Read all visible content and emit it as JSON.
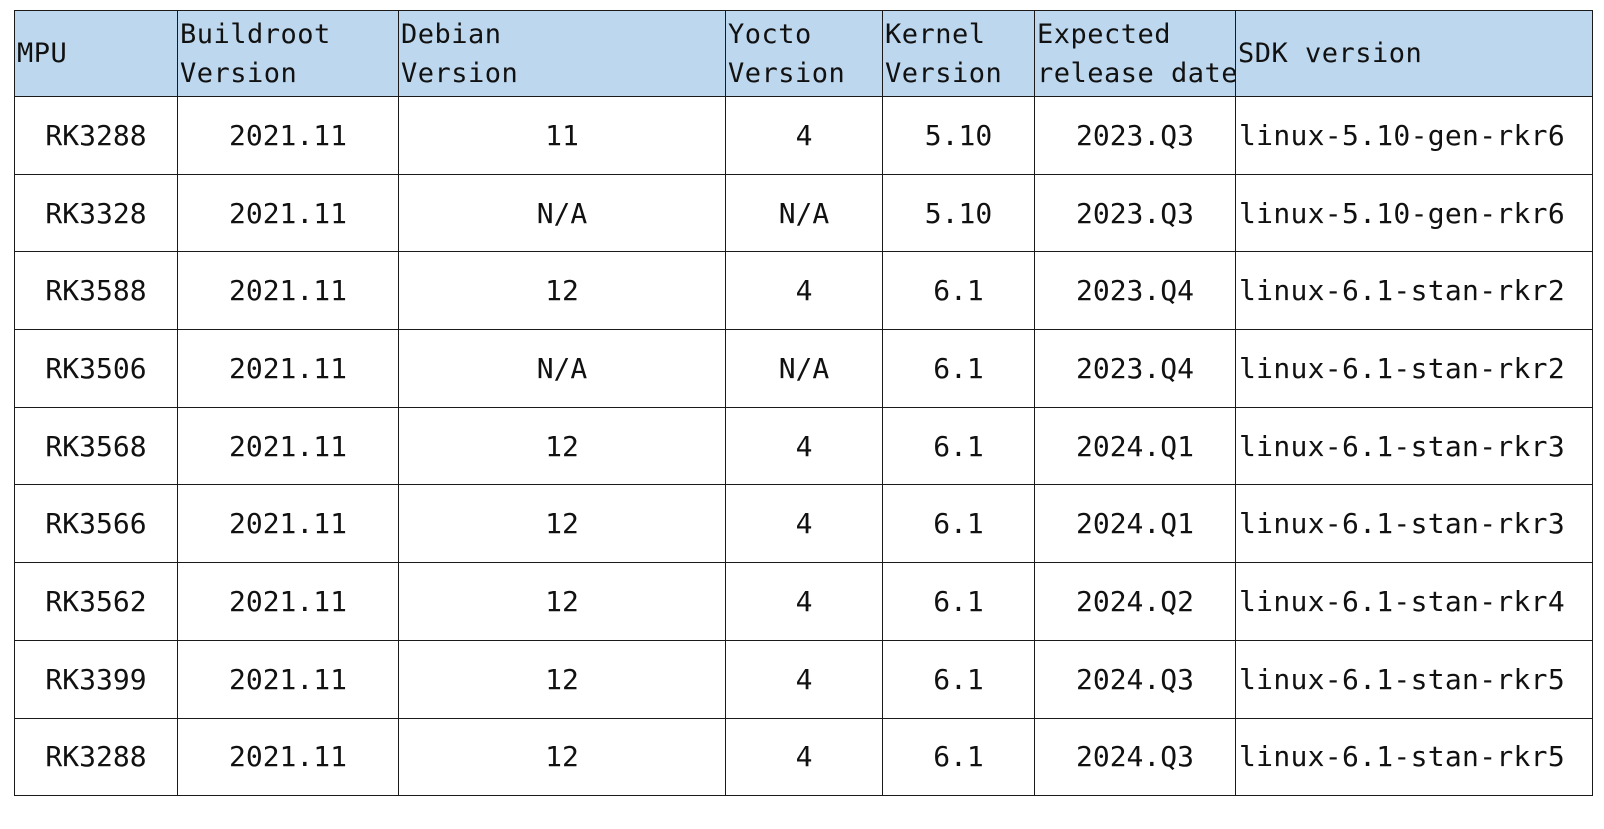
{
  "table": {
    "headers": [
      {
        "key": "mpu",
        "lines": [
          "MPU"
        ]
      },
      {
        "key": "buildroot",
        "lines": [
          "Buildroot",
          "Version"
        ]
      },
      {
        "key": "debian",
        "lines": [
          "Debian",
          "Version"
        ]
      },
      {
        "key": "yocto",
        "lines": [
          "Yocto",
          "Version"
        ]
      },
      {
        "key": "kernel",
        "lines": [
          "Kernel",
          "Version"
        ]
      },
      {
        "key": "date",
        "lines": [
          "Expected",
          "release date"
        ]
      },
      {
        "key": "sdk",
        "lines": [
          "SDK version"
        ]
      }
    ],
    "rows": [
      {
        "mpu": "RK3288",
        "buildroot": "2021.11",
        "debian": "11",
        "yocto": "4",
        "kernel": "5.10",
        "date": "2023.Q3",
        "sdk": "linux-5.10-gen-rkr6"
      },
      {
        "mpu": "RK3328",
        "buildroot": "2021.11",
        "debian": "N/A",
        "yocto": "N/A",
        "kernel": "5.10",
        "date": "2023.Q3",
        "sdk": "linux-5.10-gen-rkr6"
      },
      {
        "mpu": "RK3588",
        "buildroot": "2021.11",
        "debian": "12",
        "yocto": "4",
        "kernel": "6.1",
        "date": "2023.Q4",
        "sdk": "linux-6.1-stan-rkr2"
      },
      {
        "mpu": "RK3506",
        "buildroot": "2021.11",
        "debian": "N/A",
        "yocto": "N/A",
        "kernel": "6.1",
        "date": "2023.Q4",
        "sdk": "linux-6.1-stan-rkr2"
      },
      {
        "mpu": "RK3568",
        "buildroot": "2021.11",
        "debian": "12",
        "yocto": "4",
        "kernel": "6.1",
        "date": "2024.Q1",
        "sdk": "linux-6.1-stan-rkr3"
      },
      {
        "mpu": "RK3566",
        "buildroot": "2021.11",
        "debian": "12",
        "yocto": "4",
        "kernel": "6.1",
        "date": "2024.Q1",
        "sdk": "linux-6.1-stan-rkr3"
      },
      {
        "mpu": "RK3562",
        "buildroot": "2021.11",
        "debian": "12",
        "yocto": "4",
        "kernel": "6.1",
        "date": "2024.Q2",
        "sdk": "linux-6.1-stan-rkr4"
      },
      {
        "mpu": "RK3399",
        "buildroot": "2021.11",
        "debian": "12",
        "yocto": "4",
        "kernel": "6.1",
        "date": "2024.Q3",
        "sdk": "linux-6.1-stan-rkr5"
      },
      {
        "mpu": "RK3288",
        "buildroot": "2021.11",
        "debian": "12",
        "yocto": "4",
        "kernel": "6.1",
        "date": "2024.Q3",
        "sdk": "linux-6.1-stan-rkr5"
      }
    ]
  },
  "colors": {
    "header_background": "#bdd7ee",
    "border": "#1a1a1a",
    "text": "#111111"
  }
}
